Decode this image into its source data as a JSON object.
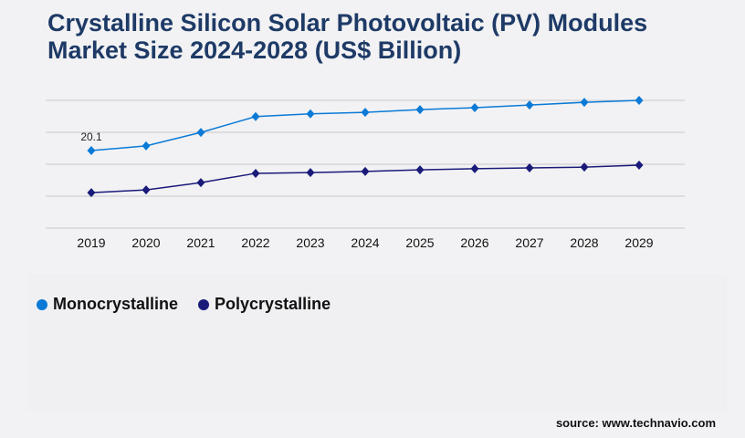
{
  "title": "Crystalline Silicon Solar Photovoltaic (PV) Modules Market Size 2024-2028 (US$ Billion)",
  "source": "source: www.technavio.com",
  "chart_data": {
    "type": "line",
    "title": "Crystalline Silicon Solar Photovoltaic (PV) Modules Market Size 2024-2028 (US$ Billion)",
    "categories": [
      "2019",
      "2020",
      "2021",
      "2022",
      "2023",
      "2024",
      "2025",
      "2026",
      "2027",
      "2028",
      "2029"
    ],
    "series": [
      {
        "name": "Monocrystalline",
        "color": "#0a7ad6",
        "values": [
          20.1,
          21.3,
          24.8,
          28.9,
          29.6,
          30.0,
          30.7,
          31.2,
          31.9,
          32.6,
          33.1
        ]
      },
      {
        "name": "Polycrystalline",
        "color": "#1a1a7a",
        "values": [
          9.2,
          9.9,
          11.8,
          14.2,
          14.4,
          14.7,
          15.1,
          15.4,
          15.6,
          15.8,
          16.3
        ]
      }
    ],
    "data_labels": [
      {
        "series": 0,
        "index": 0,
        "text": "20.1"
      }
    ],
    "ylim": [
      0,
      33.1
    ],
    "grid": true,
    "marker": "diamond",
    "legend": "bottom-left"
  }
}
